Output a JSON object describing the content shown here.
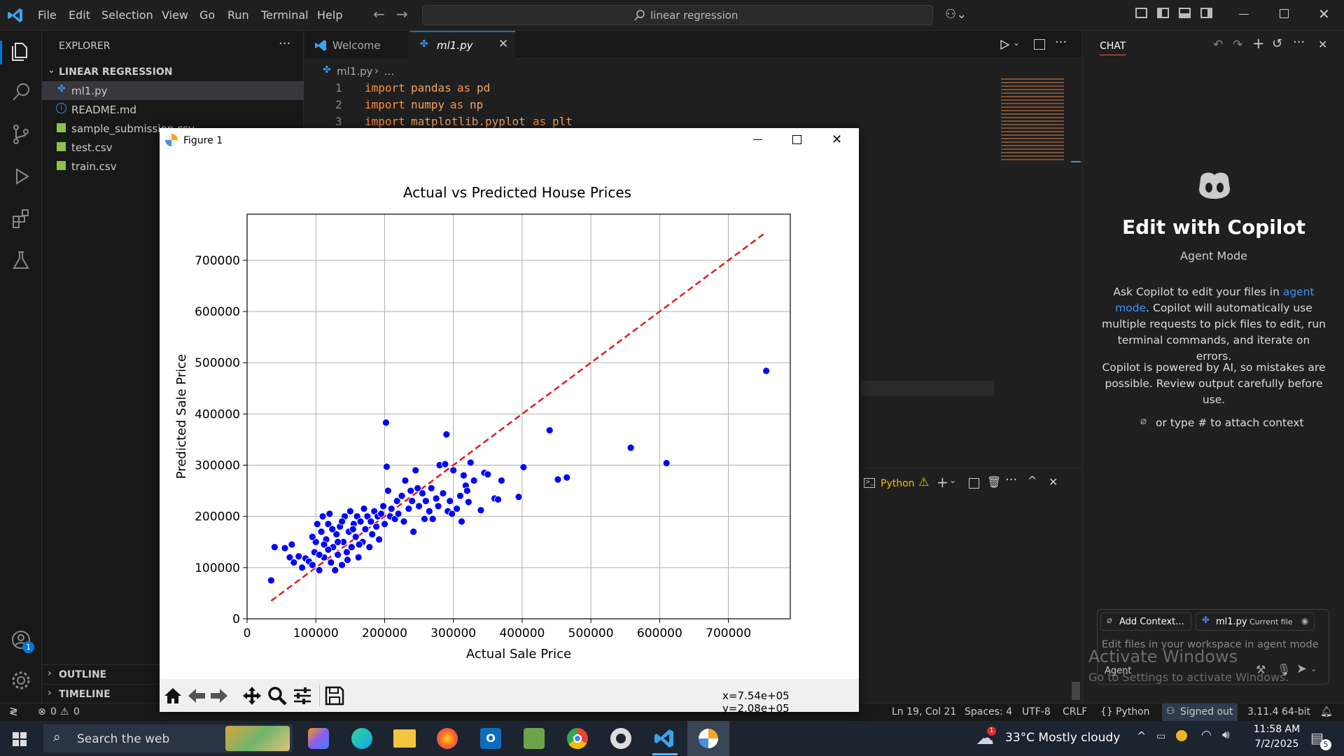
{
  "titlebar": {
    "menu": [
      "File",
      "Edit",
      "Selection",
      "View",
      "Go",
      "Run",
      "Terminal",
      "Help"
    ],
    "search_text": "linear regression"
  },
  "sidebar": {
    "title": "EXPLORER",
    "folder": "LINEAR REGRESSION",
    "files": [
      "ml1.py",
      "README.md",
      "sample_submission.csv",
      "test.csv",
      "train.csv"
    ],
    "outline": "OUTLINE",
    "timeline": "TIMELINE"
  },
  "tabs": {
    "welcome": "Welcome",
    "active": "ml1.py"
  },
  "breadcrumb": {
    "file": "ml1.py",
    "rest": "..."
  },
  "code": [
    {
      "n": "1",
      "kw": "import",
      "mod": "pandas",
      "as": "as",
      "alias": "pd"
    },
    {
      "n": "2",
      "kw": "import",
      "mod": "numpy",
      "as": "as",
      "alias": "np"
    },
    {
      "n": "3",
      "kw": "import",
      "mod": "matplotlib.pyplot",
      "as": "as",
      "alias": "plt"
    }
  ],
  "terminal": {
    "label": "Python"
  },
  "chat": {
    "header": "CHAT",
    "title": "Edit with Copilot",
    "mode": "Agent Mode",
    "desc_1": "Ask Copilot to edit your files in",
    "desc_link": "agent mode",
    "desc_2": "Copilot will automatically use multiple requests to pick files to edit, run terminal commands, and iterate on errors.",
    "disclaimer": "Copilot is powered by AI, so mistakes are possible. Review output carefully before use.",
    "attach_hint": "or type # to attach context",
    "add_context": "Add Context...",
    "current_file": "ml1.py",
    "current_file_tag": "Current file",
    "input_placeholder": "Edit files in your workspace in agent mode",
    "agent_label": "Agent",
    "watermark_1": "Activate Windows",
    "watermark_2": "Go to Settings to activate Windows."
  },
  "statusbar": {
    "errors": "0",
    "warnings": "0",
    "position": "Ln 19, Col 21",
    "spaces": "Spaces: 4",
    "encoding": "UTF-8",
    "eol": "CRLF",
    "language": "Python",
    "account": "Signed out",
    "interpreter": "3.11.4 64-bit"
  },
  "taskbar": {
    "search": "Search the web",
    "weather": "33°C  Mostly cloudy",
    "time": "11:58 AM",
    "date": "7/2/2025",
    "notifications": "5"
  },
  "figure": {
    "window_title": "Figure 1",
    "coords": "x=7.54e+05 y=2.08e+05"
  },
  "chart_data": {
    "type": "scatter",
    "title": "Actual vs Predicted House Prices",
    "xlabel": "Actual Sale Price",
    "ylabel": "Predicted Sale Price",
    "xlim": [
      0,
      790000
    ],
    "ylim": [
      0,
      790000
    ],
    "xticks": [
      0,
      100000,
      200000,
      300000,
      400000,
      500000,
      600000,
      700000
    ],
    "yticks": [
      0,
      100000,
      200000,
      300000,
      400000,
      500000,
      600000,
      700000
    ],
    "grid": true,
    "point_color": "#0000ff",
    "line_color": "#e31a1c",
    "reference_line": {
      "x": [
        35000,
        755000
      ],
      "y": [
        35000,
        755000
      ],
      "style": "dashed"
    },
    "points": [
      [
        35000,
        75000
      ],
      [
        40000,
        140000
      ],
      [
        55000,
        138000
      ],
      [
        65000,
        145000
      ],
      [
        62000,
        120000
      ],
      [
        68000,
        110000
      ],
      [
        75000,
        122000
      ],
      [
        80000,
        100000
      ],
      [
        85000,
        118000
      ],
      [
        90000,
        112000
      ],
      [
        95000,
        105000
      ],
      [
        98000,
        130000
      ],
      [
        100000,
        150000
      ],
      [
        102000,
        185000
      ],
      [
        105000,
        95000
      ],
      [
        108000,
        170000
      ],
      [
        110000,
        200000
      ],
      [
        112000,
        120000
      ],
      [
        115000,
        155000
      ],
      [
        118000,
        185000
      ],
      [
        120000,
        205000
      ],
      [
        122000,
        110000
      ],
      [
        125000,
        140000
      ],
      [
        128000,
        95000
      ],
      [
        130000,
        165000
      ],
      [
        132000,
        125000
      ],
      [
        135000,
        180000
      ],
      [
        138000,
        105000
      ],
      [
        140000,
        150000
      ],
      [
        142000,
        200000
      ],
      [
        145000,
        130000
      ],
      [
        148000,
        170000
      ],
      [
        150000,
        210000
      ],
      [
        152000,
        140000
      ],
      [
        155000,
        185000
      ],
      [
        158000,
        160000
      ],
      [
        160000,
        200000
      ],
      [
        162000,
        120000
      ],
      [
        165000,
        190000
      ],
      [
        168000,
        150000
      ],
      [
        170000,
        215000
      ],
      [
        172000,
        175000
      ],
      [
        175000,
        200000
      ],
      [
        178000,
        140000
      ],
      [
        180000,
        190000
      ],
      [
        182000,
        165000
      ],
      [
        185000,
        210000
      ],
      [
        188000,
        180000
      ],
      [
        190000,
        200000
      ],
      [
        192000,
        155000
      ],
      [
        195000,
        205000
      ],
      [
        198000,
        220000
      ],
      [
        200000,
        185000
      ],
      [
        202000,
        383000
      ],
      [
        203000,
        297000
      ],
      [
        205000,
        250000
      ],
      [
        208000,
        200000
      ],
      [
        210000,
        215000
      ],
      [
        215000,
        195000
      ],
      [
        218000,
        230000
      ],
      [
        220000,
        205000
      ],
      [
        225000,
        240000
      ],
      [
        228000,
        190000
      ],
      [
        230000,
        270000
      ],
      [
        235000,
        215000
      ],
      [
        238000,
        250000
      ],
      [
        240000,
        230000
      ],
      [
        242000,
        170000
      ],
      [
        245000,
        290000
      ],
      [
        248000,
        255000
      ],
      [
        250000,
        220000
      ],
      [
        255000,
        245000
      ],
      [
        258000,
        195000
      ],
      [
        260000,
        230000
      ],
      [
        265000,
        210000
      ],
      [
        268000,
        255000
      ],
      [
        270000,
        195000
      ],
      [
        275000,
        235000
      ],
      [
        278000,
        220000
      ],
      [
        280000,
        300000
      ],
      [
        285000,
        245000
      ],
      [
        288000,
        302000
      ],
      [
        290000,
        360000
      ],
      [
        292000,
        210000
      ],
      [
        295000,
        230000
      ],
      [
        298000,
        205000
      ],
      [
        300000,
        290000
      ],
      [
        305000,
        215000
      ],
      [
        310000,
        240000
      ],
      [
        312000,
        190000
      ],
      [
        315000,
        280000
      ],
      [
        318000,
        260000
      ],
      [
        320000,
        250000
      ],
      [
        322000,
        228000
      ],
      [
        325000,
        305000
      ],
      [
        330000,
        270000
      ],
      [
        340000,
        212000
      ],
      [
        345000,
        285000
      ],
      [
        350000,
        282000
      ],
      [
        360000,
        235000
      ],
      [
        365000,
        233000
      ],
      [
        370000,
        270000
      ],
      [
        395000,
        238000
      ],
      [
        402000,
        296000
      ],
      [
        440000,
        368000
      ],
      [
        452000,
        272000
      ],
      [
        465000,
        276000
      ],
      [
        558000,
        334000
      ],
      [
        610000,
        304000
      ],
      [
        755000,
        484000
      ],
      [
        95000,
        160000
      ],
      [
        105000,
        125000
      ],
      [
        112000,
        145000
      ],
      [
        118000,
        135000
      ],
      [
        124000,
        175000
      ],
      [
        132000,
        150000
      ],
      [
        138000,
        190000
      ],
      [
        146000,
        115000
      ],
      [
        154000,
        175000
      ],
      [
        163000,
        145000
      ]
    ]
  }
}
